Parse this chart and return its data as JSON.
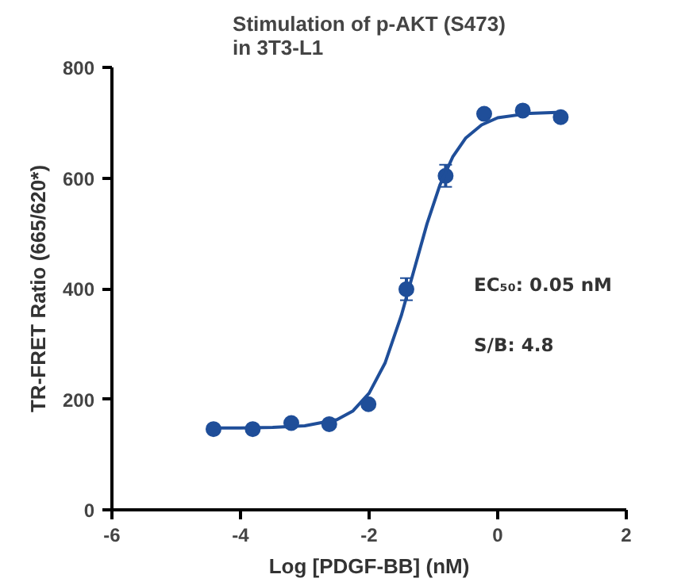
{
  "chart_data": {
    "type": "scatter",
    "title": "Stimulation of p-AKT (S473)\nin 3T3-L1",
    "xlabel": "Log [PDGF-BB] (nM)",
    "ylabel": "TR-FRET Ratio (665/620*)",
    "annotations": [
      "EC₅₀: 0.05 nM",
      "S/B: 4.8"
    ],
    "series": [
      {
        "color": "#1f4e99",
        "x": [
          -4.42,
          -3.81,
          -3.21,
          -2.62,
          -2.01,
          -1.42,
          -0.81,
          -0.21,
          0.39,
          0.98
        ],
        "values": [
          146,
          146,
          157,
          155,
          191,
          399,
          604,
          716,
          722,
          710
        ],
        "errors": [
          null,
          null,
          null,
          null,
          null,
          20,
          20,
          null,
          null,
          null
        ]
      },
      {
        "type": "line",
        "marker": "none",
        "color": "#1f4e99",
        "x": [
          -4.42,
          -4,
          -3.5,
          -3,
          -2.5,
          -2.25,
          -2,
          -1.75,
          -1.5,
          -1.3,
          -1.1,
          -0.9,
          -0.7,
          -0.5,
          -0.25,
          0,
          0.5,
          1
        ],
        "values": [
          148,
          148,
          149,
          152,
          163,
          179,
          211,
          266,
          351,
          434,
          517,
          587,
          638,
          672,
          696,
          709,
          717,
          719
        ]
      }
    ],
    "marker": "circle",
    "line_style": "solid",
    "grid": false,
    "xlim": [
      -6,
      2
    ],
    "xticks": [
      -6,
      -4,
      -2,
      0,
      2
    ],
    "ylim": [
      0,
      800
    ],
    "yticks": [
      0,
      200,
      400,
      600,
      800
    ]
  }
}
